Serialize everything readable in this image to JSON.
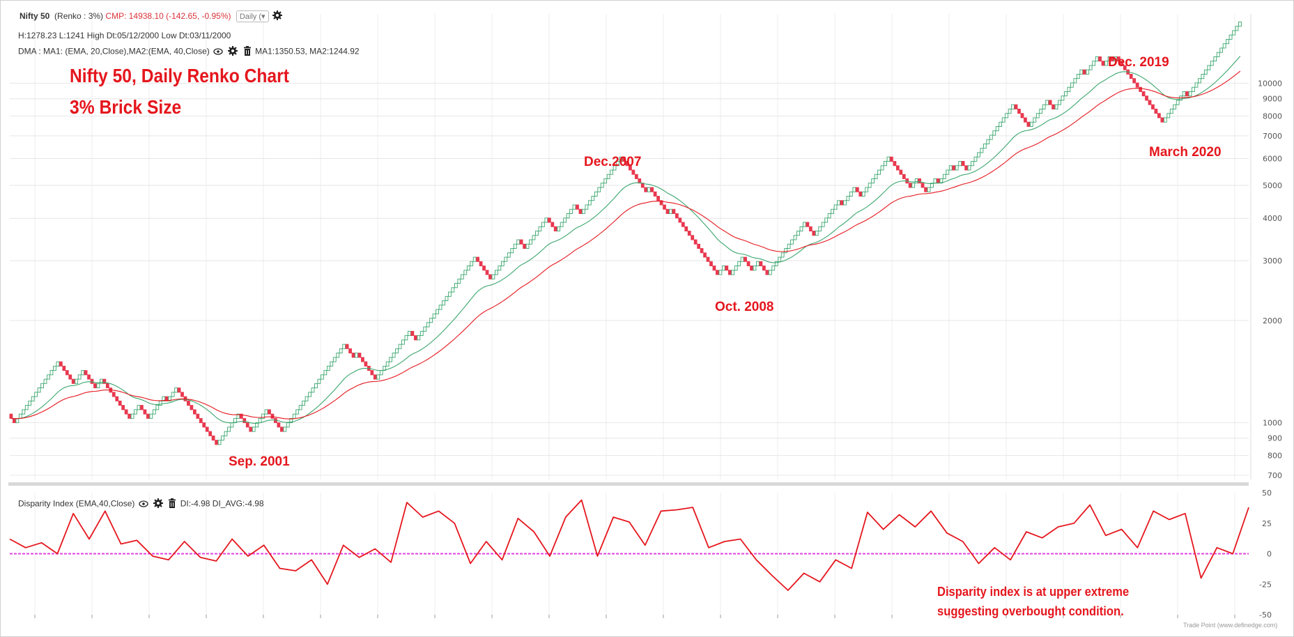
{
  "header": {
    "symbol": "Nifty 50",
    "chart_kind": "(Renko : 3%)",
    "cmp": "CMP: 14938.10 (-142.65, -0.95%)",
    "timeframe": "Daily (",
    "stats": "H:1278.23 L:1241 High Dt:05/12/2000 Low Dt:03/11/2000",
    "dma_label": "DMA : MA1: (EMA, 20,Close),MA2:(EMA, 40,Close)",
    "dma_values": "MA1:1350.53, MA2:1244.92",
    "indicator_label": "Disparity Index (EMA,40,Close)",
    "indicator_values": "DI:-4.98 DI_AVG:-4.98",
    "watermark": "Trade Point (www.definedge.com)"
  },
  "annotations": {
    "title_line1": "Nifty 50, Daily Renko Chart",
    "title_line2": "3% Brick Size",
    "sep2001": "Sep. 2001",
    "dec2007": "Dec.2007",
    "oct2008": "Oct. 2008",
    "dec2019": "Dec. 2019",
    "mar2020": "March 2020",
    "di_note_line1": "Disparity index is at upper extreme",
    "di_note_line2": "suggesting overbought condition."
  },
  "colors": {
    "up_brick": "#3aa66e",
    "down_brick": "#e8384f",
    "ma1": "#3aa66e",
    "ma2": "#e5161d",
    "di_line": "#e5161d",
    "zero_line": "#e040e0",
    "annotation": "#e5161d"
  },
  "icons": [
    "settings-icon",
    "eye-icon",
    "trash-icon",
    "dropdown-icon"
  ],
  "chart_data": [
    {
      "type": "renko",
      "title": "Nifty 50 (Renko : 3%)",
      "yscale": "log",
      "ylim": [
        680,
        16000
      ],
      "yticks": [
        700,
        800,
        900,
        1000,
        2000,
        3000,
        4000,
        5000,
        6000,
        7000,
        8000,
        9000,
        10000
      ],
      "swing_points": [
        1060,
        1000,
        1140,
        1530,
        1300,
        1440,
        1260,
        1360,
        1030,
        1110,
        1040,
        1210,
        1180,
        1270,
        1030,
        850,
        1060,
        950,
        1090,
        940,
        1020,
        1600,
        1680,
        1570,
        1580,
        1350,
        1420,
        1880,
        1750,
        1840,
        2040,
        2540,
        2690,
        3050,
        2650,
        3430,
        3300,
        4000,
        3660,
        4400,
        4180,
        4820,
        5100,
        6100,
        5000,
        4770,
        4960,
        4100,
        4250,
        3100,
        2690,
        2900,
        2720,
        3090,
        2800,
        3020,
        2690,
        3880,
        3600,
        4130,
        4500,
        4330,
        4900,
        4700,
        5300,
        6050,
        5650,
        5700,
        5400,
        5000,
        5200,
        4780,
        5300,
        5150,
        5700,
        5480,
        5900,
        5500,
        8700,
        7950,
        7400,
        8000,
        9000,
        8300,
        8800,
        10900,
        10500,
        11800,
        11300,
        12100,
        11500,
        12100,
        10300,
        7600,
        9400,
        9200,
        15000
      ],
      "series": [
        {
          "name": "MA1",
          "label": "MA1: (EMA, 20,Close)",
          "last": 1350.53
        },
        {
          "name": "MA2",
          "label": "MA2:(EMA, 40,Close)",
          "last": 1244.92
        }
      ]
    },
    {
      "type": "line",
      "title": "Disparity Index (EMA,40,Close)",
      "ylim": [
        -50,
        50
      ],
      "yticks": [
        50,
        25,
        0,
        -25,
        -50
      ],
      "zero_line": 0,
      "swing_points": [
        12,
        5,
        9,
        0,
        33,
        12,
        35,
        8,
        11,
        -2,
        -5,
        10,
        -3,
        -6,
        12,
        -2,
        7,
        -12,
        -14,
        -5,
        -25,
        7,
        -3,
        4,
        -7,
        42,
        30,
        35,
        25,
        -8,
        10,
        -5,
        29,
        18,
        -2,
        30,
        44,
        -2,
        30,
        26,
        7,
        35,
        36,
        38,
        5,
        10,
        12,
        -5,
        -18,
        -30,
        -16,
        -23,
        -5,
        -12,
        34,
        20,
        32,
        22,
        35,
        17,
        10,
        -8,
        5,
        -5,
        18,
        13,
        22,
        25,
        40,
        15,
        20,
        5,
        35,
        28,
        33,
        -20,
        5,
        0,
        38
      ]
    }
  ]
}
